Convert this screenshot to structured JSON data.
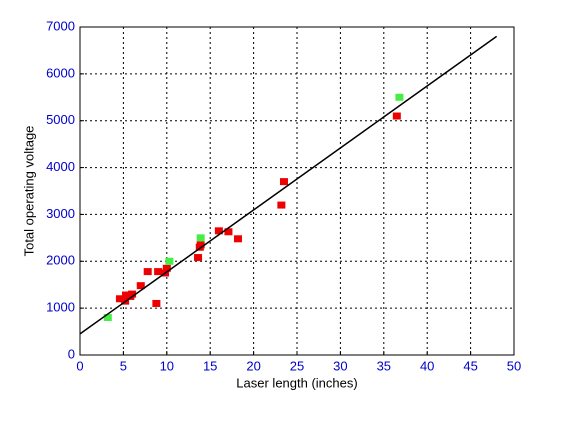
{
  "chart_data": {
    "type": "scatter",
    "xlabel": "Laser length (inches)",
    "ylabel": "Total operating voltage",
    "xlim": [
      0,
      50
    ],
    "xticks": [
      0,
      5,
      10,
      15,
      20,
      25,
      30,
      35,
      40,
      45,
      50
    ],
    "ylim": [
      0,
      7000
    ],
    "yticks": [
      0,
      1000,
      2000,
      3000,
      4000,
      5000,
      6000,
      7000
    ],
    "grid": true,
    "tick_color": "#0000cc",
    "series": [
      {
        "color": "#ee0000",
        "marker": "square",
        "x": [
          4.6,
          5.2,
          5.3,
          5.8,
          6.0,
          7.0,
          7.8,
          8.8,
          9.0,
          9.8,
          10.0,
          13.6,
          13.8,
          13.9,
          16.0,
          17.1,
          18.2,
          23.2,
          23.5,
          36.5
        ],
        "values": [
          1200,
          1150,
          1280,
          1250,
          1300,
          1480,
          1780,
          1100,
          1780,
          1750,
          1850,
          2080,
          2300,
          2350,
          2650,
          2630,
          2480,
          3200,
          3700,
          5100
        ]
      },
      {
        "color": "#44ee44",
        "marker": "square",
        "x": [
          3.2,
          10.3,
          13.9,
          36.8
        ],
        "values": [
          800,
          2000,
          2500,
          5500
        ]
      },
      {
        "color": "#000000",
        "marker": "line",
        "x": [
          0,
          48
        ],
        "values": [
          450,
          6800
        ]
      }
    ]
  }
}
